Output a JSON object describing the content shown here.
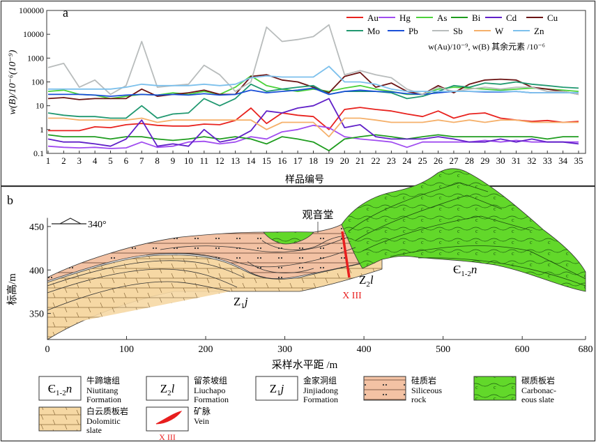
{
  "chart_data": [
    {
      "type": "line",
      "panel_label": "a",
      "title": "",
      "xlabel": "样品编号",
      "ylabel": "w(B)/10⁻⁶(10⁻⁹)",
      "yscale": "log",
      "ylim": [
        0.1,
        100000
      ],
      "ytick_labels": [
        "0.1",
        "1",
        "10",
        "100",
        "1000",
        "10000",
        "100000"
      ],
      "x": [
        1,
        2,
        3,
        4,
        5,
        6,
        7,
        8,
        9,
        10,
        11,
        12,
        13,
        14,
        15,
        16,
        17,
        18,
        19,
        20,
        21,
        22,
        23,
        24,
        25,
        26,
        27,
        28,
        29,
        30,
        31,
        32,
        33,
        34,
        35
      ],
      "unit_note": "w(Au)/10⁻⁹, w(B) 其余元素 /10⁻⁶",
      "series": [
        {
          "name": "Au",
          "color": "#e8221e",
          "values": [
            0.9,
            0.9,
            0.9,
            1.3,
            1.2,
            1.6,
            1.8,
            1.5,
            1.4,
            1.4,
            1.7,
            1.6,
            2.4,
            8,
            1.8,
            5,
            4,
            3.5,
            1,
            7,
            8.5,
            7,
            6,
            4.5,
            3.5,
            6,
            3,
            4.5,
            5,
            3,
            2.5,
            2.2,
            2.4,
            2,
            2.2
          ]
        },
        {
          "name": "Hg",
          "color": "#a04cf0",
          "values": [
            0.2,
            0.18,
            0.17,
            0.18,
            0.16,
            0.17,
            0.3,
            0.18,
            0.2,
            0.3,
            0.32,
            0.25,
            0.3,
            0.5,
            0.4,
            0.8,
            1,
            1.5,
            1.2,
            0.5,
            0.4,
            0.35,
            0.3,
            0.18,
            0.3,
            0.3,
            0.3,
            0.3,
            0.35,
            0.3,
            0.35,
            0.3,
            0.3,
            0.3,
            0.3
          ]
        },
        {
          "name": "As",
          "color": "#4cd23a",
          "values": [
            40,
            45,
            30,
            28,
            20,
            25,
            30,
            28,
            35,
            30,
            40,
            30,
            60,
            180,
            70,
            50,
            40,
            50,
            40,
            55,
            70,
            50,
            40,
            30,
            30,
            50,
            60,
            55,
            50,
            45,
            50,
            55,
            50,
            45,
            40
          ]
        },
        {
          "name": "Bi",
          "color": "#1e9c1e",
          "values": [
            0.6,
            0.5,
            0.5,
            0.5,
            0.4,
            0.5,
            0.5,
            0.4,
            0.35,
            0.4,
            0.5,
            0.4,
            0.5,
            0.4,
            0.25,
            0.5,
            0.4,
            0.3,
            0.13,
            0.4,
            0.5,
            0.6,
            0.5,
            0.4,
            0.5,
            0.6,
            0.5,
            0.5,
            0.5,
            0.5,
            0.5,
            0.5,
            0.4,
            0.5,
            0.5
          ]
        },
        {
          "name": "Cd",
          "color": "#6020c8",
          "values": [
            0.4,
            0.3,
            0.3,
            0.25,
            0.2,
            0.4,
            2.5,
            0.2,
            0.25,
            0.2,
            1,
            0.3,
            0.4,
            0.9,
            6,
            5,
            8,
            10,
            20,
            1.2,
            1.6,
            0.5,
            0.4,
            0.4,
            0.4,
            0.5,
            0.4,
            0.3,
            0.3,
            0.4,
            0.3,
            0.4,
            0.3,
            0.3,
            0.25
          ]
        },
        {
          "name": "Cu",
          "color": "#6b1414",
          "values": [
            20,
            22,
            18,
            20,
            20,
            20,
            50,
            25,
            30,
            35,
            45,
            30,
            30,
            170,
            200,
            120,
            100,
            60,
            35,
            170,
            250,
            60,
            90,
            40,
            30,
            70,
            35,
            80,
            120,
            130,
            120,
            60,
            50,
            40,
            30
          ]
        },
        {
          "name": "Mo",
          "color": "#209870",
          "values": [
            5,
            4,
            3.5,
            3.5,
            3,
            3,
            10,
            3,
            4.5,
            5,
            20,
            10,
            20,
            80,
            40,
            50,
            60,
            70,
            30,
            40,
            40,
            40,
            35,
            20,
            25,
            40,
            70,
            60,
            90,
            80,
            100,
            80,
            70,
            60,
            55
          ]
        },
        {
          "name": "Pb",
          "color": "#1a4fd8",
          "values": [
            30,
            30,
            30,
            28,
            25,
            28,
            30,
            28,
            30,
            28,
            32,
            28,
            30,
            45,
            35,
            40,
            45,
            55,
            30,
            40,
            45,
            40,
            38,
            32,
            30,
            35,
            40,
            40,
            38,
            38,
            40,
            35,
            35,
            35,
            35
          ]
        },
        {
          "name": "Sb",
          "color": "#b8bcbc",
          "values": [
            400,
            600,
            60,
            120,
            30,
            70,
            5000,
            60,
            70,
            80,
            500,
            200,
            40,
            100,
            20000,
            5000,
            6000,
            8000,
            25000,
            200,
            300,
            200,
            150,
            50,
            30,
            60,
            40,
            50,
            60,
            50,
            60,
            60,
            40,
            40,
            30
          ]
        },
        {
          "name": "W",
          "color": "#f5b06a",
          "values": [
            3,
            3,
            2.5,
            2.5,
            2.5,
            2.5,
            3,
            2,
            2.5,
            2.5,
            2.5,
            2.5,
            2.5,
            2.5,
            1,
            2,
            2,
            2,
            0.5,
            3,
            3,
            2.5,
            2,
            2,
            2,
            2.5,
            2,
            2.5,
            2,
            2.5,
            2.5,
            2,
            2,
            2,
            2
          ]
        },
        {
          "name": "Zn",
          "color": "#7cc0ec",
          "values": [
            50,
            50,
            50,
            50,
            50,
            60,
            80,
            70,
            70,
            70,
            80,
            70,
            80,
            150,
            180,
            160,
            160,
            160,
            450,
            100,
            100,
            80,
            50,
            40,
            40,
            40,
            40,
            40,
            40,
            40,
            40,
            35,
            35,
            35,
            35
          ]
        }
      ]
    },
    {
      "type": "cross-section",
      "panel_label": "b",
      "xlabel": "采样水平距 /m",
      "ylabel": "标高/m",
      "xlim": [
        0,
        680
      ],
      "ylim": [
        320,
        470
      ],
      "x_tick_labels": [
        "0",
        "100",
        "200",
        "300",
        "400",
        "500",
        "600",
        "680"
      ],
      "y_tick_labels": [
        "350",
        "400",
        "450"
      ],
      "direction": "340°",
      "place_label": "观音堂",
      "vein_label": "X III",
      "unit_labels": [
        {
          "id": "Z1j",
          "main": "Z",
          "sub": "1",
          "tail": "j"
        },
        {
          "id": "Z2l",
          "main": "Z",
          "sub": "2",
          "tail": "l"
        },
        {
          "id": "e12n",
          "main": "Є",
          "sub": "1-2",
          "tail": "n"
        }
      ]
    }
  ],
  "legend": [
    {
      "symbol_main": "Є",
      "symbol_sub": "1-2",
      "symbol_tail": "n",
      "cn": "牛蹄塘组",
      "en1": "Niutitang",
      "en2": "Formation",
      "en3": ""
    },
    {
      "symbol_main": "Z",
      "symbol_sub": "2",
      "symbol_tail": "l",
      "cn": "留茶坡组",
      "en1": "Liuchapo",
      "en2": "Formation",
      "en3": ""
    },
    {
      "symbol_main": "Z",
      "symbol_sub": "1",
      "symbol_tail": "j",
      "cn": "金家洞组",
      "en1": "Jinjiadong",
      "en2": "Formation",
      "en3": ""
    },
    {
      "symbol_main": "",
      "symbol_sub": "",
      "symbol_tail": "",
      "cn": "硅质岩",
      "en1": "Siliceous",
      "en2": "rock",
      "en3": ""
    },
    {
      "symbol_main": "",
      "symbol_sub": "",
      "symbol_tail": "",
      "cn": "碳质板岩",
      "en1": "Carbonac-",
      "en2": "eous slate",
      "en3": ""
    },
    {
      "symbol_main": "",
      "symbol_sub": "",
      "symbol_tail": "",
      "cn": "白云质板岩",
      "en1": "Dolomitic",
      "en2": "slate",
      "en3": ""
    },
    {
      "symbol_main": "",
      "symbol_sub": "",
      "symbol_tail": "",
      "cn": "矿脉",
      "en1": "Vein",
      "en2": "",
      "en3": "X III"
    }
  ],
  "colors": {
    "siliceous": "#f3c2a4",
    "dolomitic": "#f6d8a4",
    "carbonaceous": "#62d82a",
    "vein": "#e81e1e",
    "frame": "#333333"
  }
}
